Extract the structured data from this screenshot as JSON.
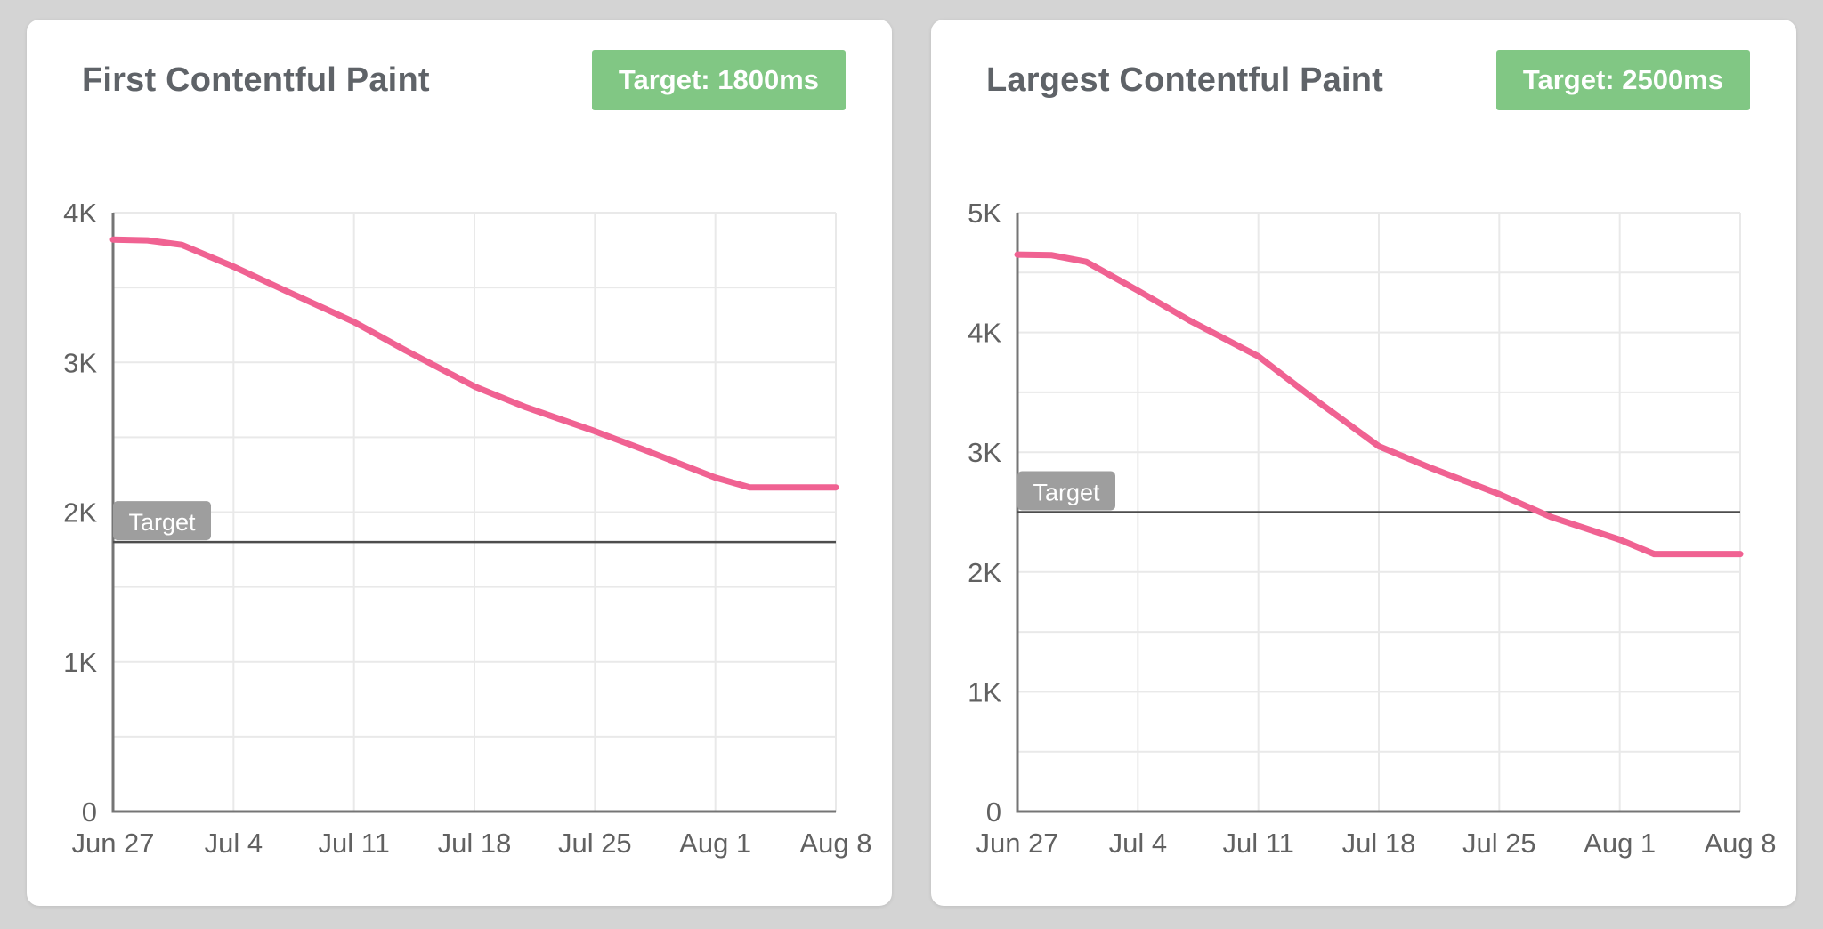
{
  "theme": {
    "page_bg": "#d4d4d4",
    "card_bg": "#ffffff",
    "title_color": "#5f6368",
    "tick_color": "#616161",
    "axis_color": "#757575",
    "grid_color": "#e9e9e9",
    "line_color": "#f06292",
    "target_line_color": "#4d4d4d",
    "target_label_bg": "#9e9e9e",
    "target_label_text": "#ffffff",
    "badge_bg": "#81c784",
    "badge_text": "#ffffff"
  },
  "chart_data": [
    {
      "type": "line",
      "name": "first-contentful-paint",
      "title": "First Contentful Paint",
      "target_badge_label": "Target: 1800ms",
      "target": {
        "label": "Target",
        "value_ms": 1800
      },
      "xlabel": "",
      "ylabel": "",
      "xlim_days": [
        0,
        42
      ],
      "ylim_ms": [
        0,
        4000
      ],
      "grid": {
        "horizontal_step_ms": 500,
        "vertical_step_days": 7,
        "grid_on": true
      },
      "x_ticks": {
        "days": [
          0,
          7,
          14,
          21,
          28,
          35,
          42
        ],
        "labels": [
          "Jun 27",
          "Jul 4",
          "Jul 11",
          "Jul 18",
          "Jul 25",
          "Aug 1",
          "Aug 8"
        ]
      },
      "y_ticks": {
        "values_ms": [
          0,
          1000,
          2000,
          3000,
          4000
        ],
        "labels": [
          "0",
          "1K",
          "2K",
          "3K",
          "4K"
        ]
      },
      "legend": "none",
      "series": [
        {
          "name": "First Contentful Paint (ms)",
          "points_day_ms": [
            [
              0,
              3820
            ],
            [
              2,
              3815
            ],
            [
              4,
              3785
            ],
            [
              7,
              3640
            ],
            [
              10,
              3480
            ],
            [
              14,
              3270
            ],
            [
              17,
              3080
            ],
            [
              21,
              2840
            ],
            [
              24,
              2700
            ],
            [
              28,
              2540
            ],
            [
              31,
              2410
            ],
            [
              35,
              2230
            ],
            [
              37,
              2165
            ],
            [
              42,
              2165
            ]
          ]
        }
      ]
    },
    {
      "type": "line",
      "name": "largest-contentful-paint",
      "title": "Largest Contentful Paint",
      "target_badge_label": "Target: 2500ms",
      "target": {
        "label": "Target",
        "value_ms": 2500
      },
      "xlabel": "",
      "ylabel": "",
      "xlim_days": [
        0,
        42
      ],
      "ylim_ms": [
        0,
        5000
      ],
      "grid": {
        "horizontal_step_ms": 500,
        "vertical_step_days": 7,
        "grid_on": true
      },
      "x_ticks": {
        "days": [
          0,
          7,
          14,
          21,
          28,
          35,
          42
        ],
        "labels": [
          "Jun 27",
          "Jul 4",
          "Jul 11",
          "Jul 18",
          "Jul 25",
          "Aug 1",
          "Aug 8"
        ]
      },
      "y_ticks": {
        "values_ms": [
          0,
          1000,
          2000,
          3000,
          4000,
          5000
        ],
        "labels": [
          "0",
          "1K",
          "2K",
          "3K",
          "4K",
          "5K"
        ]
      },
      "legend": "none",
      "series": [
        {
          "name": "Largest Contentful Paint (ms)",
          "points_day_ms": [
            [
              0,
              4650
            ],
            [
              2,
              4645
            ],
            [
              4,
              4590
            ],
            [
              7,
              4350
            ],
            [
              10,
              4100
            ],
            [
              14,
              3800
            ],
            [
              17,
              3470
            ],
            [
              21,
              3050
            ],
            [
              24,
              2870
            ],
            [
              28,
              2650
            ],
            [
              31,
              2460
            ],
            [
              35,
              2270
            ],
            [
              37,
              2150
            ],
            [
              42,
              2150
            ]
          ]
        }
      ]
    }
  ]
}
